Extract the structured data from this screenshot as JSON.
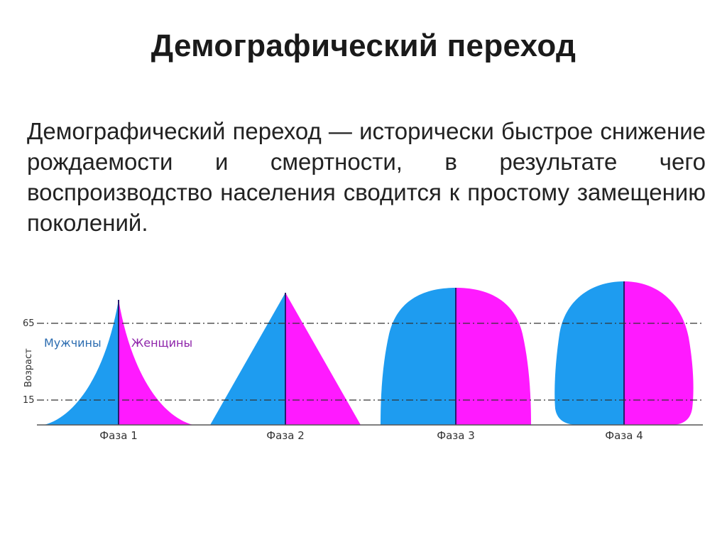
{
  "slide": {
    "title": "Демографический переход",
    "definition": "Демографический переход — исторически быстрое снижение рождаемости и смертности, в результате чего воспроизводство населения сводится к простому замещению поколений."
  },
  "diagram": {
    "axis_label": "Возраст",
    "age_marks": [
      "65",
      "15"
    ],
    "legend": {
      "men": "Мужчины",
      "women": "Женщины"
    },
    "colors": {
      "men": "#1e9cf0",
      "women": "#ff1aff",
      "divider": "#2a1a6e",
      "dash_line": "#333333"
    },
    "phases": [
      {
        "label": "Фаза 1",
        "shape": "concave-pyramid"
      },
      {
        "label": "Фаза 2",
        "shape": "triangle"
      },
      {
        "label": "Фаза 3",
        "shape": "bell"
      },
      {
        "label": "Фаза 4",
        "shape": "dome"
      }
    ]
  }
}
